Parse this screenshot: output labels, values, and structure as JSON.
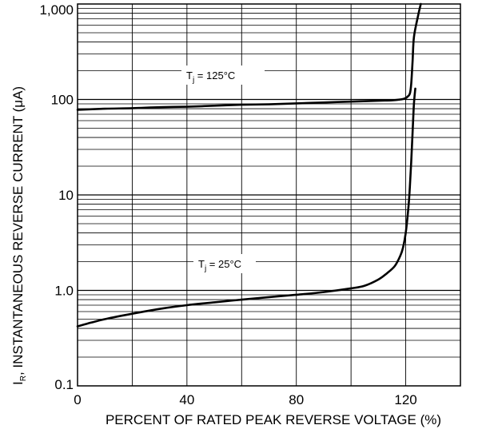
{
  "chart_data": {
    "type": "line",
    "xlabel": "PERCENT OF RATED PEAK REVERSE VOLTAGE (%)",
    "ylabel_main": "I",
    "ylabel_sub": "R",
    "ylabel_rest": ", INSTANTANEOUS REVERSE CURRENT (μA)",
    "xlim": [
      0,
      140
    ],
    "ylim": [
      0.1,
      1000
    ],
    "yscale": "log",
    "grid": true,
    "x_tick_labels": [
      {
        "value": 0,
        "label": "0"
      },
      {
        "value": 40,
        "label": "40"
      },
      {
        "value": 80,
        "label": "80"
      },
      {
        "value": 120,
        "label": "120"
      }
    ],
    "y_tick_labels": [
      {
        "value": 0.1,
        "label": "0.1"
      },
      {
        "value": 1,
        "label": "1.0"
      },
      {
        "value": 10,
        "label": "10"
      },
      {
        "value": 100,
        "label": "100"
      },
      {
        "value": 1000,
        "label": "1,000"
      }
    ],
    "series": [
      {
        "name": "Tj = 125°C",
        "label_main": "T",
        "label_sub": "j",
        "label_rest": " = 125°C",
        "x": [
          0,
          10,
          20,
          30,
          40,
          50,
          60,
          70,
          80,
          90,
          100,
          110,
          115,
          118,
          119.5,
          120.5,
          121.5,
          122,
          122.5,
          123,
          124.5,
          125.5
        ],
        "y": [
          78,
          80,
          81,
          83,
          84,
          86,
          88,
          89,
          91,
          93,
          95,
          97,
          98,
          100,
          102,
          106,
          115,
          145,
          250,
          450,
          750,
          1000
        ]
      },
      {
        "name": "Tj = 25°C",
        "label_main": "T",
        "label_sub": "j",
        "label_rest": " = 25°C",
        "x": [
          0,
          5,
          10,
          20,
          30,
          40,
          50,
          60,
          70,
          80,
          90,
          100,
          105,
          110,
          113,
          116,
          118,
          119,
          120,
          121,
          121.5,
          122,
          122.5,
          123,
          123.5
        ],
        "y": [
          0.42,
          0.46,
          0.5,
          0.57,
          0.64,
          0.7,
          0.75,
          0.8,
          0.85,
          0.9,
          0.96,
          1.05,
          1.12,
          1.3,
          1.5,
          1.8,
          2.3,
          2.8,
          4.0,
          7.5,
          12,
          22,
          45,
          90,
          130
        ]
      }
    ]
  }
}
